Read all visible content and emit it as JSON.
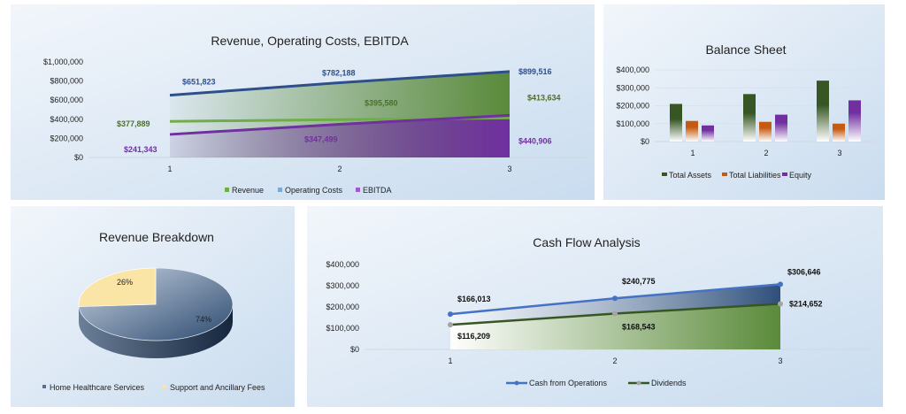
{
  "chart_data": [
    {
      "type": "area",
      "title": "Revenue, Operating Costs, EBITDA",
      "categories": [
        "1",
        "2",
        "3"
      ],
      "yticks": [
        "$0",
        "$200,000",
        "$400,000",
        "$600,000",
        "$800,000",
        "$1,000,000"
      ],
      "ylim": [
        0,
        1000000
      ],
      "series": [
        {
          "name": "Revenue",
          "values": [
            377889,
            395580,
            413634
          ],
          "labels": [
            "$377,889",
            "$395,580",
            "$413,634"
          ],
          "color": "#5a8a3a"
        },
        {
          "name": "Operating Costs",
          "values": [
            651823,
            782188,
            899516
          ],
          "labels": [
            "$651,823",
            "$782,188",
            "$899,516"
          ],
          "color": "#2e4f8a"
        },
        {
          "name": "EBITDA",
          "values": [
            241343,
            347499,
            440906
          ],
          "labels": [
            "$241,343",
            "$347,499",
            "$440,906"
          ],
          "color": "#7030a0"
        }
      ],
      "legend": "bottom"
    },
    {
      "type": "bar",
      "title": "Balance Sheet",
      "categories": [
        "1",
        "2",
        "3"
      ],
      "yticks": [
        "$0",
        "$100,000",
        "$200,000",
        "$300,000",
        "$400,000"
      ],
      "ylim": [
        0,
        400000
      ],
      "series": [
        {
          "name": "Total Assets",
          "values": [
            210000,
            265000,
            340000
          ],
          "color": "#375623"
        },
        {
          "name": "Total Liabilities",
          "values": [
            115000,
            110000,
            100000
          ],
          "color": "#c55a11"
        },
        {
          "name": "Equity",
          "values": [
            90000,
            150000,
            230000
          ],
          "color": "#7030a0"
        }
      ],
      "legend": "bottom"
    },
    {
      "type": "pie",
      "title": "Revenue Breakdown",
      "slices": [
        {
          "name": "Home Healthcare Services",
          "value": 74,
          "label": "74%",
          "color": "#3b5a80"
        },
        {
          "name": "Support and Ancillary Fees",
          "value": 26,
          "label": "26%",
          "color": "#fbe5a6"
        }
      ],
      "legend": "bottom"
    },
    {
      "type": "line",
      "title": "Cash Flow Analysis",
      "categories": [
        "1",
        "2",
        "3"
      ],
      "yticks": [
        "$0",
        "$100,000",
        "$200,000",
        "$300,000",
        "$400,000"
      ],
      "ylim": [
        0,
        400000
      ],
      "series": [
        {
          "name": "Cash from Operations",
          "values": [
            166013,
            240775,
            306646
          ],
          "labels": [
            "$166,013",
            "$240,775",
            "$306,646"
          ],
          "color": "#4472c4"
        },
        {
          "name": "Dividends",
          "values": [
            116209,
            168543,
            214652
          ],
          "labels": [
            "$116,209",
            "$168,543",
            "$214,652"
          ],
          "color": "#375623"
        }
      ],
      "legend": "bottom"
    }
  ]
}
